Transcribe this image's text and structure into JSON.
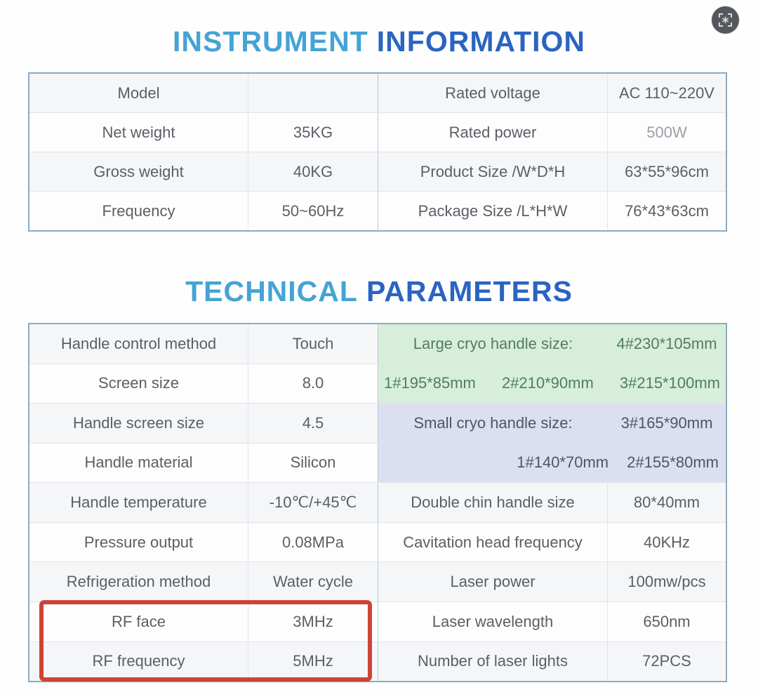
{
  "colors": {
    "title_light": "#45a3d5",
    "title_dark": "#2b64c1",
    "highlight_green_bg": "#d7eeda",
    "highlight_green_text": "#527c63",
    "highlight_purple_bg": "#dcdef1",
    "highlight_purple_text": "#4f5569",
    "red_box_border": "#cc4437"
  },
  "header_icon": {
    "name": "scan-icon"
  },
  "instrument_info": {
    "title": {
      "part1": "INSTRUMENT",
      "part2": "INFORMATION"
    },
    "rows": [
      {
        "label_left": "Model",
        "value_left": "",
        "label_right": "Rated voltage",
        "value_right": "AC 110~220V"
      },
      {
        "label_left": "Net weight",
        "value_left": "35KG",
        "label_right": "Rated power",
        "value_right": "500W",
        "muted": true
      },
      {
        "label_left": "Gross weight",
        "value_left": "40KG",
        "label_right": "Product Size /W*D*H",
        "value_right": "63*55*96cm"
      },
      {
        "label_left": "Frequency",
        "value_left": "50~60Hz",
        "label_right": "Package Size /L*H*W",
        "value_right": "76*43*63cm"
      }
    ]
  },
  "technical_params": {
    "title": {
      "part1": "TECHNICAL",
      "part2": "PARAMETERS"
    },
    "left_rows": [
      {
        "label": "Handle control method",
        "value": "Touch"
      },
      {
        "label": "Screen size",
        "value": "8.0"
      },
      {
        "label": "Handle screen size",
        "value": "4.5"
      },
      {
        "label": "Handle material",
        "value": "Silicon"
      },
      {
        "label": "Handle temperature",
        "value": "-10℃/+45℃"
      },
      {
        "label": "Pressure output",
        "value": "0.08MPa"
      },
      {
        "label": "Refrigeration method",
        "value": "Water cycle"
      },
      {
        "label": "RF face",
        "value": "3MHz"
      },
      {
        "label": "RF frequency",
        "value": "5MHz"
      }
    ],
    "right_rows": [
      {
        "type": "label_value",
        "style": "green",
        "label": "Large cryo handle size:",
        "value": "4#230*105mm"
      },
      {
        "type": "merged",
        "style": "green",
        "align": "spread",
        "items": [
          "1#195*85mm",
          "2#210*90mm",
          "3#215*100mm"
        ]
      },
      {
        "type": "label_value",
        "style": "purple",
        "label": "Small cryo handle size:",
        "value": "3#165*90mm"
      },
      {
        "type": "merged",
        "style": "purple",
        "align": "right",
        "items": [
          "1#140*70mm",
          "2#155*80mm"
        ]
      },
      {
        "type": "label_value",
        "style": "plain",
        "label": "Double chin handle size",
        "value": "80*40mm"
      },
      {
        "type": "label_value",
        "style": "plain",
        "label": "Cavitation head frequency",
        "value": "40KHz"
      },
      {
        "type": "label_value",
        "style": "plain",
        "label": "Laser power",
        "value": "100mw/pcs"
      },
      {
        "type": "label_value",
        "style": "plain",
        "label": "Laser wavelength",
        "value": "650nm"
      },
      {
        "type": "label_value",
        "style": "plain",
        "label": "Number of laser lights",
        "value": "72PCS"
      }
    ],
    "red_box_rows": [
      "RF face",
      "RF frequency"
    ]
  }
}
